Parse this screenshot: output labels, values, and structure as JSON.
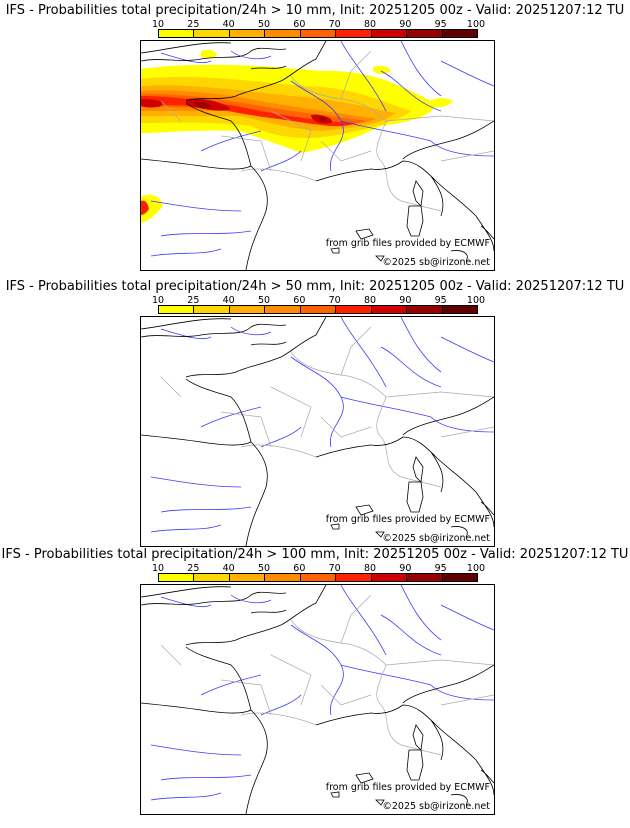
{
  "colorbar": {
    "ticks": [
      "10",
      "25",
      "40",
      "50",
      "60",
      "70",
      "80",
      "90",
      "95",
      "100"
    ],
    "colors": [
      "#ffff00",
      "#ffd700",
      "#ffb000",
      "#ff8c00",
      "#ff6400",
      "#ff2000",
      "#d00000",
      "#980000",
      "#600000"
    ]
  },
  "credits": {
    "source": "from grib files provided by ECMWF",
    "copyright": "©2025 sb@irizone.net"
  },
  "panels": [
    {
      "title": "IFS - Probabilities total precipitation/24h > 10 mm, Init: 20251205 00z - Valid: 20251207:12 TU",
      "has_precip": true
    },
    {
      "title": "IFS - Probabilities total precipitation/24h > 50 mm, Init: 20251205 00z - Valid: 20251207:12 TU",
      "has_precip": false
    },
    {
      "title": "IFS - Probabilities total precipitation/24h > 100 mm, Init: 20251205 00z - Valid: 20251207:12 TU",
      "has_precip": false
    }
  ]
}
